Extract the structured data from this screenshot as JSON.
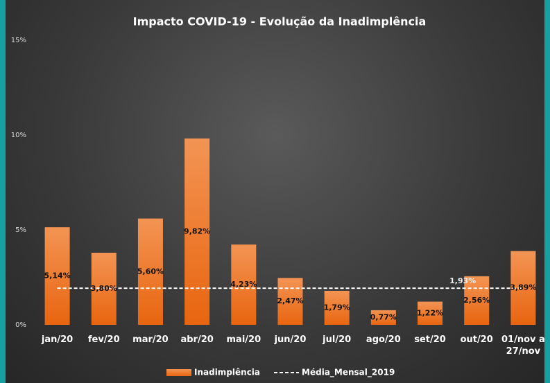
{
  "chart_data": {
    "type": "bar",
    "title": "Impacto COVID-19 - Evolução da Inadimplência",
    "categories": [
      "jan/20",
      "fev/20",
      "mar/20",
      "abr/20",
      "mai/20",
      "jun/20",
      "jul/20",
      "ago/20",
      "set/20",
      "out/20",
      "01/nov a 27/nov"
    ],
    "series": [
      {
        "name": "Inadimplência",
        "type": "bar",
        "color": "#ee7a2a",
        "values": [
          5.14,
          3.8,
          5.6,
          9.82,
          4.23,
          2.47,
          1.79,
          0.77,
          1.22,
          2.56,
          3.89
        ],
        "value_labels": [
          "5,14%",
          "3,80%",
          "5,60%",
          "9,82%",
          "4,23%",
          "2,47%",
          "1,79%",
          "0,77%",
          "1,22%",
          "2,56%",
          "3,89%"
        ]
      },
      {
        "name": "Média_Mensal_2019",
        "type": "line",
        "color": "#ffffff",
        "values": [
          1.93,
          1.93,
          1.93,
          1.93,
          1.93,
          1.93,
          1.93,
          1.93,
          1.93,
          1.93,
          1.93
        ],
        "value_labels": [
          null,
          null,
          null,
          null,
          null,
          null,
          null,
          null,
          null,
          "1,93%",
          null
        ]
      }
    ],
    "ylim": [
      0,
      15
    ],
    "yticks": [
      {
        "value": 0,
        "label": "0%"
      },
      {
        "value": 5,
        "label": "5%"
      },
      {
        "value": 10,
        "label": "10%"
      },
      {
        "value": 15,
        "label": "15%"
      }
    ],
    "grid": false,
    "legend": "bottom"
  }
}
